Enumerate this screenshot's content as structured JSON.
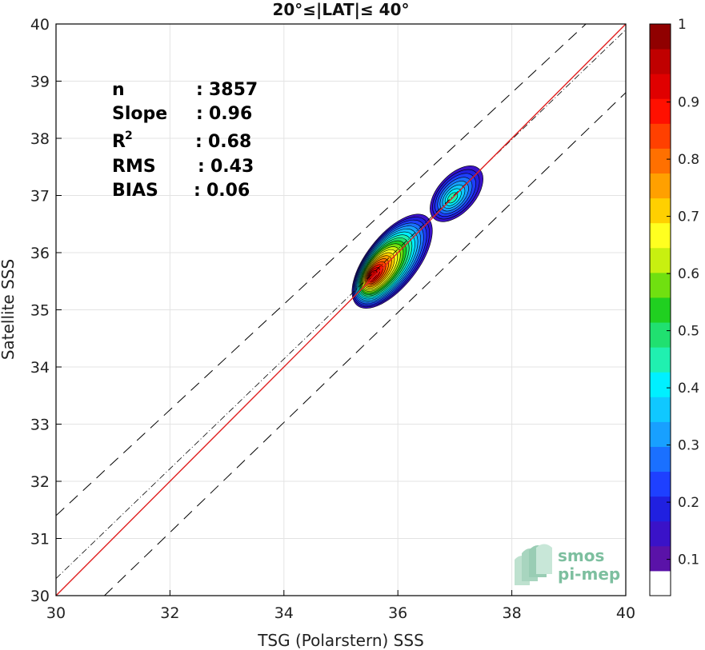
{
  "chart_data": {
    "type": "heatmap",
    "title": "20°≤|LAT|≤ 40°",
    "xlabel": "TSG (Polarstern) SSS",
    "ylabel": "Satellite SSS",
    "xlim": [
      30,
      40
    ],
    "ylim": [
      30,
      40
    ],
    "xticks": [
      "30",
      "32",
      "34",
      "36",
      "38",
      "40"
    ],
    "yticks": [
      "30",
      "31",
      "32",
      "33",
      "34",
      "35",
      "36",
      "37",
      "38",
      "39",
      "40"
    ],
    "grid": true,
    "stats": [
      {
        "name": "n",
        "sep": ": ",
        "value": "3857"
      },
      {
        "name": "Slope",
        "sep": ": ",
        "value": "0.96"
      },
      {
        "name": "R",
        "sup": "2",
        "sep": ": ",
        "value": "0.68"
      },
      {
        "name": "RMS",
        "sep": ": ",
        "value": "0.43"
      },
      {
        "name": "BIAS",
        "sep": ": ",
        "value": "0.06"
      }
    ],
    "lines": {
      "one_to_one": {
        "x": [
          30,
          40
        ],
        "y": [
          30,
          40
        ],
        "color": "#e02020"
      },
      "fit": {
        "x": [
          30,
          40
        ],
        "y": [
          30.3,
          39.9
        ],
        "color": "#000000",
        "style": "dash-dot"
      },
      "upper_bound": {
        "x": [
          30,
          39.3
        ],
        "y": [
          31.4,
          40
        ],
        "color": "#000000",
        "style": "dashed"
      },
      "lower_bound": {
        "x": [
          30.85,
          40
        ],
        "y": [
          30,
          38.8
        ],
        "color": "#000000",
        "style": "dashed"
      }
    },
    "density_peaks": [
      {
        "x": 35.55,
        "y": 35.6,
        "level": 1.0
      },
      {
        "x": 36.95,
        "y": 36.95,
        "level": 0.4
      }
    ],
    "colorbar": {
      "ticks": [
        "0.1",
        "0.2",
        "0.3",
        "0.4",
        "0.5",
        "0.6",
        "0.7",
        "0.8",
        "0.9",
        "1"
      ],
      "range": [
        0,
        1
      ],
      "colors": [
        "#ffffff",
        "#5a12a8",
        "#3a12c8",
        "#2020e0",
        "#1e40ff",
        "#1a70ff",
        "#18a0ff",
        "#10c8ff",
        "#00f0ff",
        "#20f0b0",
        "#20e070",
        "#20d020",
        "#70e010",
        "#c8f010",
        "#ffff20",
        "#ffd000",
        "#ffa000",
        "#ff7000",
        "#ff4000",
        "#ff1000",
        "#e00000",
        "#c00000",
        "#900000"
      ]
    }
  },
  "logo": {
    "line1": "smos",
    "line2": "pi-mep"
  }
}
